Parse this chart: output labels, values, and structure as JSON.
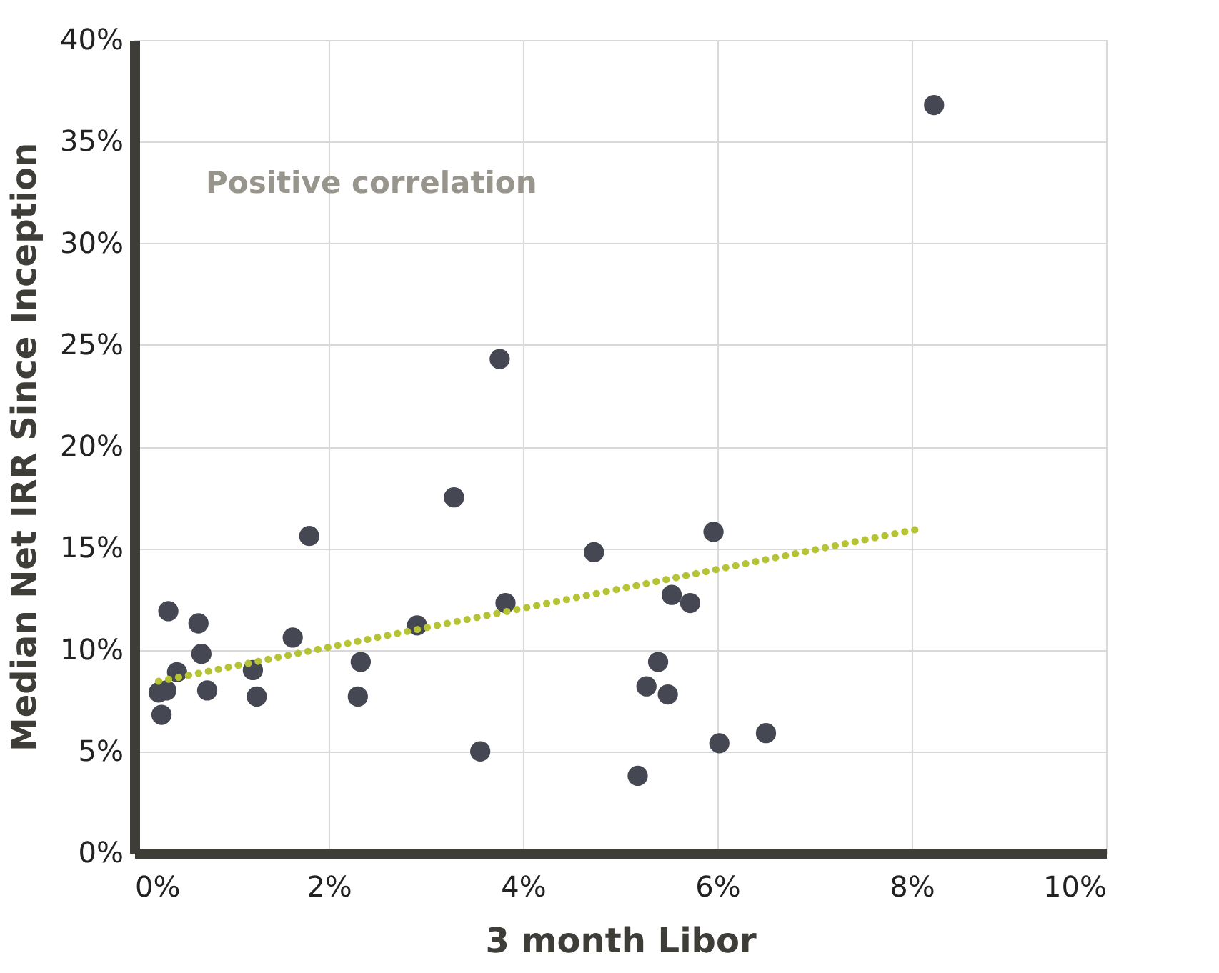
{
  "chart_data": {
    "type": "scatter",
    "xlabel": "3 month Libor",
    "ylabel": "Median Net IRR Since Inception",
    "annotations": [
      "Positive correlation"
    ],
    "series": [
      {
        "type": "scatter",
        "color": "#454852",
        "marker": "circle",
        "x": [
          0.35,
          0.66,
          0.69,
          0.44,
          0.25,
          0.33,
          0.28,
          0.75,
          1.22,
          1.26,
          1.63,
          1.8,
          2.33,
          2.3,
          2.91,
          3.56,
          3.82,
          3.76,
          3.29,
          4.73,
          5.96,
          5.53,
          5.72,
          5.39,
          5.27,
          5.49,
          6.02,
          6.5,
          5.18,
          8.23
        ],
        "values": [
          11.9,
          11.3,
          9.8,
          8.9,
          7.9,
          8.0,
          6.8,
          8.0,
          9.0,
          7.7,
          10.6,
          15.6,
          9.4,
          7.7,
          11.2,
          5.0,
          12.3,
          24.3,
          17.5,
          14.8,
          15.8,
          12.7,
          12.3,
          9.4,
          8.2,
          7.8,
          5.4,
          5.9,
          3.8,
          36.8
        ]
      },
      {
        "type": "line",
        "color": "#b5c334",
        "line_style": "dotted",
        "x": [
          0.25,
          8.13
        ],
        "values": [
          8.45,
          16.0
        ]
      }
    ],
    "xlim": [
      0,
      10
    ],
    "xticks": [
      {
        "value": 0,
        "label": "0%"
      },
      {
        "value": 2,
        "label": "2%"
      },
      {
        "value": 4,
        "label": "4%"
      },
      {
        "value": 6,
        "label": "6%"
      },
      {
        "value": 8,
        "label": "8%"
      },
      {
        "value": 10,
        "label": "10%"
      }
    ],
    "ylim": [
      0,
      40
    ],
    "yticks": [
      {
        "value": 0,
        "label": "0%"
      },
      {
        "value": 5,
        "label": "5%"
      },
      {
        "value": 10,
        "label": "10%"
      },
      {
        "value": 15,
        "label": "15%"
      },
      {
        "value": 20,
        "label": "20%"
      },
      {
        "value": 25,
        "label": "25%"
      },
      {
        "value": 30,
        "label": "30%"
      },
      {
        "value": 35,
        "label": "35%"
      },
      {
        "value": 40,
        "label": "40%"
      }
    ],
    "grid": true
  }
}
